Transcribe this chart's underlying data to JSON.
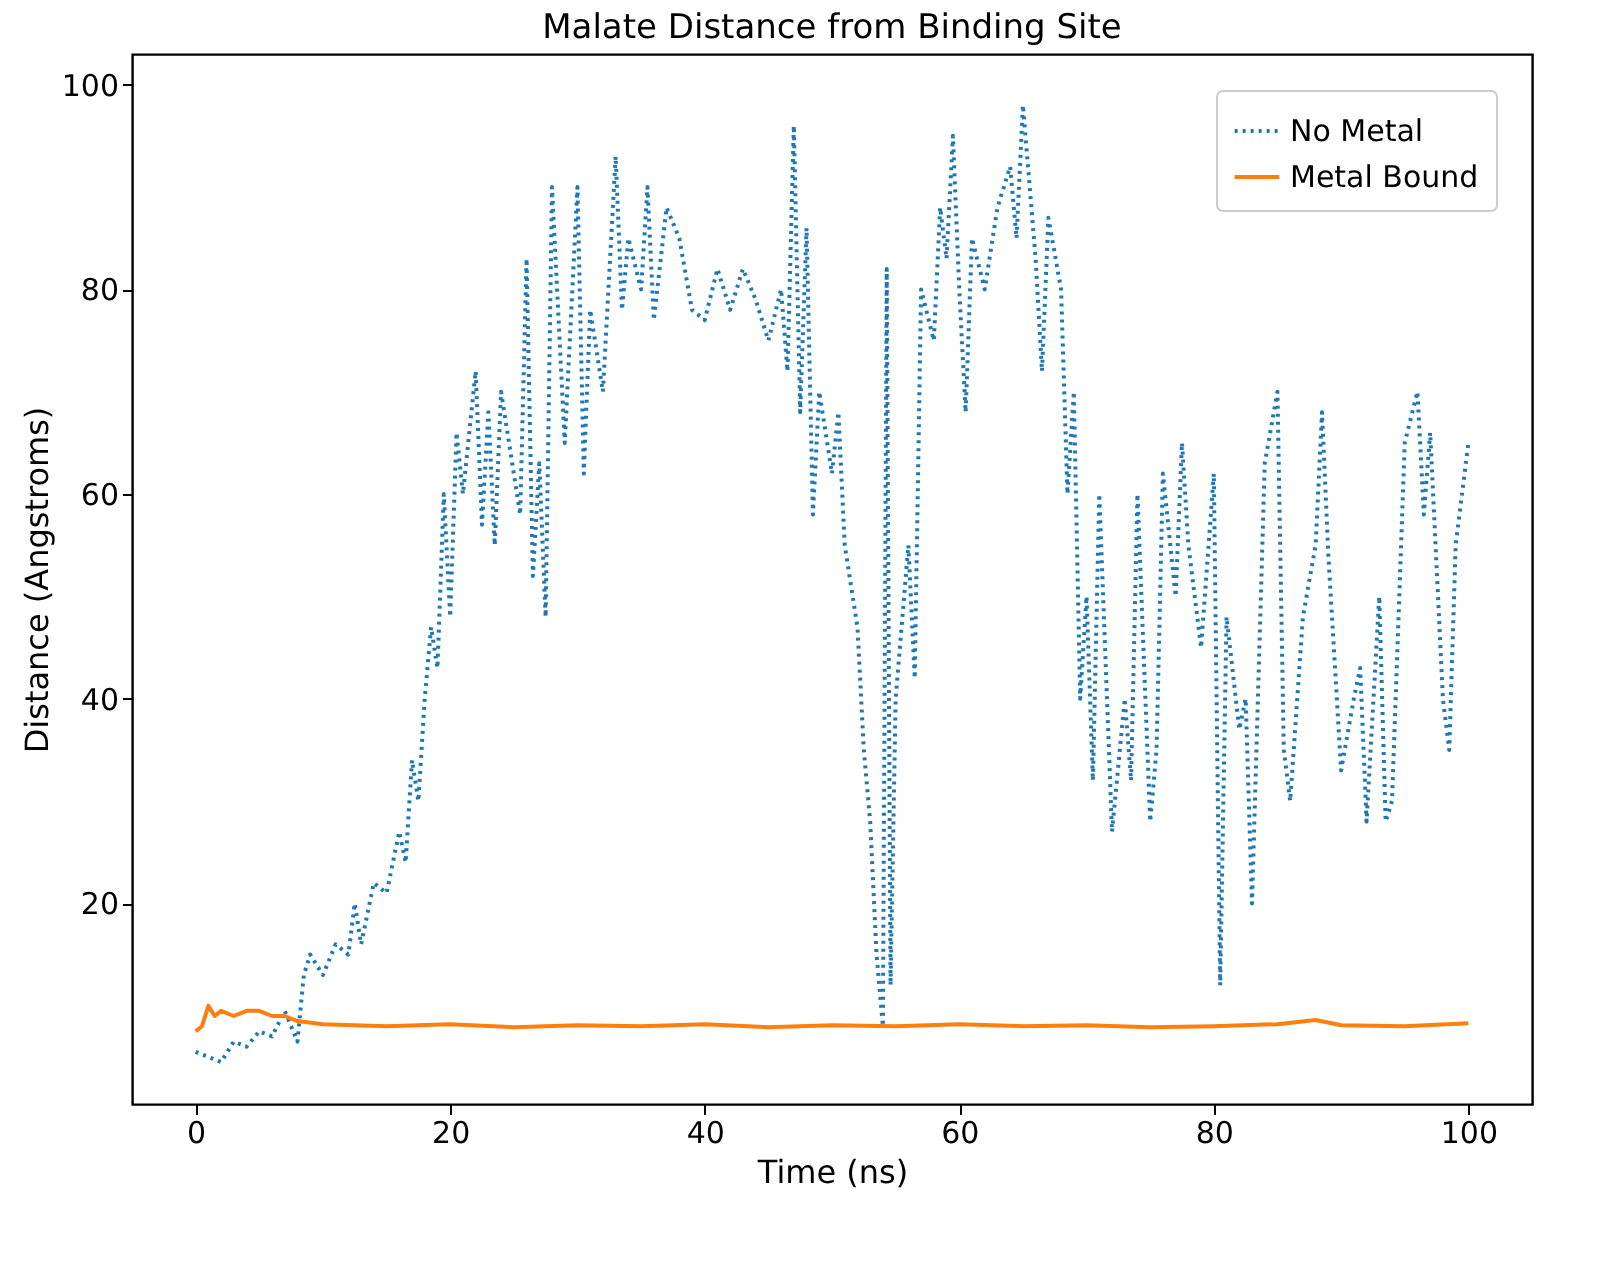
{
  "chart_data": {
    "type": "line",
    "title": "Malate Distance from Binding Site",
    "xlabel": "Time (ns)",
    "ylabel": "Distance (Angstroms)",
    "xlim": [
      -5,
      105
    ],
    "ylim": [
      0.4,
      103
    ],
    "xticks": [
      0,
      20,
      40,
      60,
      80,
      100
    ],
    "yticks": [
      20,
      40,
      60,
      80,
      100
    ],
    "grid": false,
    "legend": "top right",
    "series": [
      {
        "name": "No Metal",
        "color": "#1f77b4",
        "line_style": "dotted",
        "x": [
          0,
          1,
          2,
          3,
          4,
          5,
          6,
          7,
          8,
          8.5,
          9,
          10,
          11,
          12,
          12.5,
          13,
          14,
          15,
          16,
          16.5,
          17,
          17.5,
          18,
          18.5,
          19,
          19.5,
          20,
          20.5,
          21,
          22,
          22.5,
          23,
          23.5,
          24,
          25,
          25.5,
          26,
          26.5,
          27,
          27.5,
          28,
          29,
          30,
          30.5,
          31,
          32,
          33,
          33.5,
          34,
          35,
          35.5,
          36,
          37,
          38,
          39,
          40,
          41,
          42,
          43,
          44,
          45,
          46,
          46.5,
          47,
          47.5,
          48,
          48.5,
          49,
          50,
          50.5,
          51,
          52,
          52.5,
          53,
          53.5,
          54,
          54.3,
          54.6,
          55,
          56,
          56.5,
          57,
          58,
          58.5,
          59,
          59.5,
          60,
          60.5,
          61,
          62,
          63,
          64,
          64.5,
          65,
          66,
          66.5,
          67,
          68,
          68.5,
          69,
          69.5,
          70,
          70.5,
          71,
          72,
          73,
          73.5,
          74,
          75,
          75.5,
          76,
          77,
          77.5,
          78,
          79,
          80,
          80.5,
          81,
          82,
          82.5,
          83,
          84,
          85,
          85.5,
          86,
          87,
          88,
          88.5,
          89,
          90,
          91,
          91.5,
          92,
          93,
          93.5,
          94,
          95,
          96,
          96.5,
          97,
          98,
          98.5,
          99,
          100
        ],
        "values": [
          5.5,
          5,
          4.5,
          6.5,
          6,
          7.5,
          7,
          9.5,
          6.5,
          13,
          15,
          13,
          16,
          15,
          20,
          16,
          22,
          21,
          27,
          24,
          34,
          30,
          40,
          47,
          43,
          60,
          48,
          66,
          60,
          72,
          57,
          68,
          55,
          70,
          62,
          58,
          83,
          52,
          63,
          48,
          90,
          65,
          90,
          62,
          78,
          70,
          93,
          78,
          85,
          80,
          90,
          77,
          88,
          85,
          78,
          77,
          82,
          78,
          82,
          79,
          75,
          80,
          72,
          96,
          68,
          86,
          58,
          70,
          62,
          68,
          55,
          47,
          35,
          28,
          15,
          8,
          82,
          12,
          40,
          55,
          42,
          80,
          75,
          88,
          83,
          95,
          80,
          68,
          85,
          80,
          88,
          92,
          85,
          98,
          83,
          72,
          87,
          80,
          60,
          70,
          40,
          50,
          32,
          60,
          27,
          40,
          32,
          60,
          28,
          35,
          62,
          50,
          65,
          55,
          45,
          62,
          12,
          48,
          37,
          40,
          20,
          63,
          70,
          35,
          30,
          48,
          55,
          68,
          54,
          33,
          40,
          43,
          28,
          50,
          28,
          30,
          65,
          70,
          58,
          66,
          40,
          35,
          55,
          65
        ]
      },
      {
        "name": "Metal Bound",
        "color": "#ff7f0e",
        "line_style": "solid",
        "x": [
          0,
          0.5,
          1,
          1.5,
          2,
          3,
          4,
          5,
          6,
          7,
          8,
          10,
          15,
          20,
          25,
          30,
          35,
          40,
          45,
          50,
          55,
          60,
          65,
          70,
          75,
          80,
          85,
          88,
          90,
          95,
          100
        ],
        "values": [
          7.5,
          8,
          10,
          9,
          9.5,
          9,
          9.5,
          9.5,
          9,
          9,
          8.5,
          8.2,
          8,
          8.2,
          7.9,
          8.1,
          8,
          8.2,
          7.9,
          8.1,
          8,
          8.2,
          8,
          8.1,
          7.9,
          8,
          8.2,
          8.6,
          8.1,
          8,
          8.3
        ]
      }
    ]
  }
}
